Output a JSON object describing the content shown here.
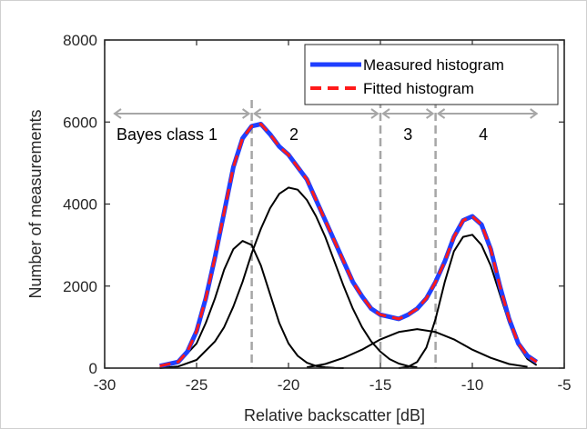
{
  "chart_data": {
    "type": "line",
    "xlabel": "Relative backscatter [dB]",
    "ylabel": "Number of measurements",
    "xlim": [
      -30,
      -5
    ],
    "ylim": [
      0,
      8000
    ],
    "xticks": [
      -30,
      -25,
      -20,
      -15,
      -10,
      -5
    ],
    "yticks": [
      0,
      2000,
      4000,
      6000,
      8000
    ],
    "grid": false,
    "legend_position": "top-right",
    "series": [
      {
        "name": "Measured histogram",
        "color": "#1f3fff",
        "style": "solid",
        "x": [
          -27,
          -26,
          -25.5,
          -25,
          -24.5,
          -24,
          -23.5,
          -23,
          -22.5,
          -22,
          -21.5,
          -21,
          -20.5,
          -20,
          -19.5,
          -19,
          -18.5,
          -18,
          -17.5,
          -17,
          -16.5,
          -16,
          -15.5,
          -15,
          -14.5,
          -14,
          -13.5,
          -13,
          -12.5,
          -12,
          -11.5,
          -11,
          -10.5,
          -10,
          -9.5,
          -9,
          -8.5,
          -8,
          -7.5,
          -7,
          -6.5
        ],
        "y": [
          50,
          150,
          400,
          900,
          1700,
          2700,
          3800,
          4900,
          5600,
          5900,
          5950,
          5700,
          5400,
          5200,
          4900,
          4600,
          4100,
          3600,
          3100,
          2600,
          2100,
          1750,
          1450,
          1300,
          1250,
          1200,
          1300,
          1450,
          1700,
          2100,
          2600,
          3200,
          3600,
          3700,
          3500,
          2900,
          2000,
          1200,
          600,
          300,
          150
        ]
      },
      {
        "name": "Fitted histogram",
        "color": "#ff1a1a",
        "style": "dashed",
        "x": [
          -27,
          -26,
          -25.5,
          -25,
          -24.5,
          -24,
          -23.5,
          -23,
          -22.5,
          -22,
          -21.5,
          -21,
          -20.5,
          -20,
          -19.5,
          -19,
          -18.5,
          -18,
          -17.5,
          -17,
          -16.5,
          -16,
          -15.5,
          -15,
          -14.5,
          -14,
          -13.5,
          -13,
          -12.5,
          -12,
          -11.5,
          -11,
          -10.5,
          -10,
          -9.5,
          -9,
          -8.5,
          -8,
          -7.5,
          -7,
          -6.5
        ],
        "y": [
          50,
          150,
          400,
          900,
          1700,
          2700,
          3800,
          4900,
          5600,
          5900,
          5950,
          5700,
          5400,
          5200,
          4900,
          4600,
          4100,
          3600,
          3100,
          2600,
          2100,
          1750,
          1450,
          1300,
          1250,
          1200,
          1300,
          1450,
          1700,
          2100,
          2600,
          3200,
          3600,
          3700,
          3500,
          2900,
          2000,
          1200,
          600,
          300,
          150
        ]
      }
    ],
    "components": [
      {
        "color": "#000000",
        "x": [
          -27,
          -26,
          -25,
          -24.5,
          -24,
          -23.5,
          -23,
          -22.5,
          -22,
          -21.5,
          -21,
          -20.5,
          -20,
          -19.5,
          -19,
          -18.5,
          -18,
          -17.5,
          -17
        ],
        "y": [
          20,
          120,
          600,
          1100,
          1700,
          2400,
          2900,
          3100,
          3000,
          2500,
          1800,
          1100,
          600,
          300,
          130,
          50,
          20,
          5,
          0
        ]
      },
      {
        "color": "#000000",
        "x": [
          -27,
          -26,
          -25,
          -24,
          -23.5,
          -23,
          -22.5,
          -22,
          -21.5,
          -21,
          -20.5,
          -20,
          -19.5,
          -19,
          -18.5,
          -18,
          -17.5,
          -17,
          -16.5,
          -16,
          -15.5,
          -15,
          -14.5,
          -14,
          -13.5,
          -13
        ],
        "y": [
          0,
          40,
          200,
          650,
          1000,
          1500,
          2100,
          2800,
          3400,
          3900,
          4250,
          4400,
          4350,
          4100,
          3700,
          3200,
          2600,
          2000,
          1450,
          1000,
          650,
          400,
          220,
          110,
          50,
          20
        ]
      },
      {
        "color": "#000000",
        "x": [
          -19,
          -18,
          -17,
          -16,
          -15,
          -14,
          -13,
          -12,
          -11,
          -10,
          -9,
          -8,
          -7
        ],
        "y": [
          20,
          100,
          250,
          450,
          700,
          880,
          950,
          880,
          700,
          450,
          250,
          100,
          30
        ]
      },
      {
        "color": "#000000",
        "x": [
          -14,
          -13.5,
          -13,
          -12.5,
          -12,
          -11.5,
          -11,
          -10.5,
          -10,
          -9.5,
          -9,
          -8.5,
          -8,
          -7.5,
          -7,
          -6.5
        ],
        "y": [
          0,
          30,
          150,
          500,
          1200,
          2100,
          2850,
          3200,
          3250,
          3000,
          2500,
          1800,
          1100,
          550,
          220,
          70
        ]
      }
    ],
    "class_boundaries": [
      -22,
      -15,
      -12
    ],
    "class_labels": [
      "Bayes class 1",
      "2",
      "3",
      "4"
    ],
    "class_ranges": [
      [
        -30,
        -22
      ],
      [
        -22,
        -15
      ],
      [
        -15,
        -12
      ],
      [
        -12,
        -6.5
      ]
    ]
  }
}
